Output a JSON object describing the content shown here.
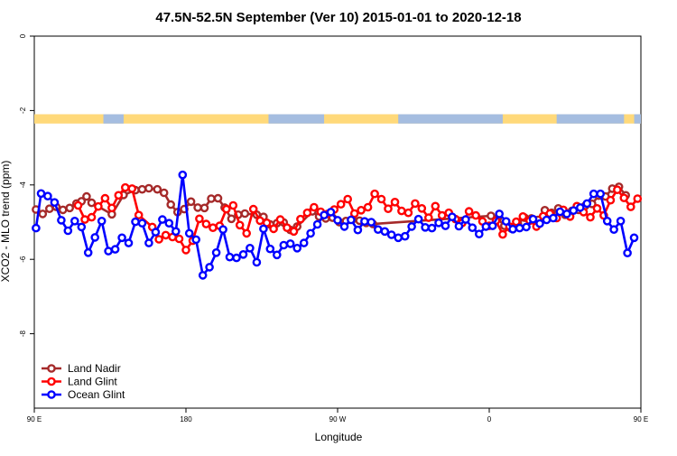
{
  "chart_data": {
    "type": "line",
    "title": "47.5N-52.5N September (Ver 10)   2015-01-01 to 2020-12-18",
    "xlabel": "Longitude",
    "ylabel": "XCO2 - MLO trend (ppm)",
    "xlim": [
      90,
      450
    ],
    "ylim": [
      -10,
      0
    ],
    "x_ticks": [
      {
        "value": 90,
        "label": "90 E"
      },
      {
        "value": 180,
        "label": "180"
      },
      {
        "value": 270,
        "label": "90 W"
      },
      {
        "value": 360,
        "label": "0"
      },
      {
        "value": 450,
        "label": "90 E"
      },
      {
        "value": 540,
        "label": "180"
      }
    ],
    "y_ticks": [
      {
        "value": 0,
        "label": "0"
      },
      {
        "value": -2,
        "label": "-2"
      },
      {
        "value": -4,
        "label": "-4"
      },
      {
        "value": -6,
        "label": "-6"
      },
      {
        "value": -8,
        "label": "-8"
      }
    ],
    "grid": false,
    "legend_position": "bottom-left",
    "land_ocean_band": {
      "y_range": [
        -2.1,
        -2.35
      ],
      "land_color": "#ffd97a",
      "ocean_color": "#a5bde0",
      "ocean_segments": [
        [
          131,
          143
        ],
        [
          229,
          262
        ],
        [
          306,
          368
        ],
        [
          400,
          440
        ],
        [
          446,
          450
        ]
      ]
    },
    "series": [
      {
        "name": "Land Nadir",
        "color": "#a52a2a",
        "x": [
          91,
          95,
          99,
          103,
          107,
          111,
          115,
          118,
          121,
          124,
          136,
          143,
          150,
          154,
          158,
          163,
          167,
          171,
          175,
          179,
          183,
          187,
          191,
          195,
          199,
          203,
          207,
          211,
          215,
          222,
          226,
          230,
          234,
          238,
          242,
          246,
          255,
          259,
          263,
          267,
          271,
          275,
          279,
          283,
          287,
          291,
          361,
          365,
          369,
          373,
          377,
          381,
          385,
          389,
          393,
          397,
          401,
          405,
          409,
          413,
          417,
          421,
          425,
          429,
          433,
          437,
          441
        ],
        "y": [
          -4.66,
          -4.78,
          -4.64,
          -4.59,
          -4.67,
          -4.62,
          -4.5,
          -4.44,
          -4.31,
          -4.48,
          -4.79,
          -4.27,
          -4.14,
          -4.12,
          -4.09,
          -4.12,
          -4.21,
          -4.53,
          -4.73,
          -4.65,
          -4.45,
          -4.61,
          -4.62,
          -4.37,
          -4.36,
          -4.61,
          -4.91,
          -4.8,
          -4.77,
          -4.8,
          -4.86,
          -5.06,
          -5.03,
          -5.01,
          -5.21,
          -5.12,
          -4.71,
          -4.85,
          -4.9,
          -4.88,
          -5.0,
          -4.97,
          -4.92,
          -4.96,
          -5.02,
          -5.05,
          -4.83,
          -4.9,
          -5.1,
          -5.17,
          -5.05,
          -4.88,
          -4.9,
          -4.94,
          -4.68,
          -4.75,
          -4.63,
          -4.8,
          -4.7,
          -4.67,
          -4.56,
          -4.51,
          -4.29,
          -4.31,
          -4.1,
          -4.05,
          -4.28
        ]
      },
      {
        "name": "Land Glint",
        "color": "#ff0000",
        "x": [
          116,
          120,
          124,
          128,
          132,
          136,
          140,
          144,
          148,
          152,
          160,
          164,
          168,
          172,
          176,
          180,
          184,
          188,
          192,
          196,
          200,
          204,
          208,
          212,
          216,
          220,
          224,
          228,
          232,
          236,
          240,
          244,
          248,
          252,
          256,
          260,
          264,
          268,
          272,
          276,
          280,
          284,
          288,
          292,
          296,
          300,
          304,
          308,
          312,
          316,
          320,
          324,
          328,
          332,
          336,
          340,
          344,
          348,
          352,
          356,
          360,
          364,
          368,
          372,
          376,
          380,
          384,
          388,
          392,
          396,
          400,
          404,
          408,
          412,
          416,
          420,
          424,
          428,
          432,
          436,
          440,
          444,
          448
        ],
        "y": [
          -4.55,
          -4.93,
          -4.87,
          -4.58,
          -4.36,
          -4.62,
          -4.28,
          -4.07,
          -4.1,
          -4.81,
          -5.13,
          -5.46,
          -5.35,
          -5.4,
          -5.45,
          -5.75,
          -5.5,
          -4.91,
          -5.05,
          -5.15,
          -5.1,
          -4.65,
          -4.55,
          -5.08,
          -5.3,
          -4.65,
          -4.96,
          -5.02,
          -5.18,
          -4.93,
          -5.15,
          -5.25,
          -4.92,
          -4.75,
          -4.6,
          -4.72,
          -4.78,
          -4.66,
          -4.52,
          -4.38,
          -4.77,
          -4.68,
          -4.6,
          -4.24,
          -4.38,
          -4.64,
          -4.46,
          -4.7,
          -4.75,
          -4.5,
          -4.63,
          -4.88,
          -4.57,
          -4.82,
          -4.75,
          -4.92,
          -5.02,
          -4.71,
          -4.82,
          -4.98,
          -5.1,
          -4.96,
          -5.33,
          -5.12,
          -4.99,
          -4.85,
          -4.96,
          -5.12,
          -4.84,
          -4.77,
          -4.89,
          -4.67,
          -4.85,
          -4.57,
          -4.73,
          -4.87,
          -4.63,
          -4.82,
          -4.41,
          -4.13,
          -4.35,
          -4.59,
          -4.37
        ]
      },
      {
        "name": "Ocean Glint",
        "color": "#0000ff",
        "x": [
          91,
          94,
          98,
          102,
          106,
          110,
          114,
          118,
          122,
          126,
          130,
          134,
          138,
          142,
          146,
          150,
          154,
          158,
          162,
          166,
          170,
          174,
          178,
          182,
          186,
          190,
          194,
          198,
          202,
          206,
          210,
          214,
          218,
          222,
          226,
          230,
          234,
          238,
          242,
          246,
          250,
          254,
          258,
          262,
          266,
          270,
          274,
          278,
          282,
          286,
          290,
          294,
          298,
          302,
          306,
          310,
          314,
          318,
          322,
          326,
          330,
          334,
          338,
          342,
          346,
          350,
          354,
          358,
          362,
          366,
          370,
          374,
          378,
          382,
          386,
          390,
          394,
          398,
          402,
          406,
          410,
          414,
          418,
          422,
          426,
          430,
          434,
          438,
          442,
          446
        ],
        "y": [
          -5.16,
          -4.23,
          -4.3,
          -4.47,
          -4.95,
          -5.23,
          -4.97,
          -5.13,
          -5.82,
          -5.41,
          -4.97,
          -5.78,
          -5.73,
          -5.42,
          -5.56,
          -4.99,
          -5.03,
          -5.56,
          -5.27,
          -4.93,
          -5.03,
          -5.25,
          -3.73,
          -5.3,
          -5.47,
          -6.43,
          -6.21,
          -5.82,
          -5.2,
          -5.94,
          -5.96,
          -5.87,
          -5.7,
          -6.08,
          -5.18,
          -5.72,
          -5.88,
          -5.62,
          -5.58,
          -5.7,
          -5.56,
          -5.3,
          -5.06,
          -4.81,
          -4.73,
          -4.95,
          -5.12,
          -4.94,
          -5.21,
          -4.98,
          -5.0,
          -5.2,
          -5.25,
          -5.34,
          -5.42,
          -5.38,
          -5.12,
          -4.92,
          -5.14,
          -5.16,
          -5.02,
          -5.1,
          -4.86,
          -5.11,
          -4.93,
          -5.15,
          -5.32,
          -5.12,
          -5.1,
          -4.78,
          -4.98,
          -5.19,
          -5.16,
          -5.13,
          -4.92,
          -5.04,
          -4.94,
          -4.89,
          -4.72,
          -4.78,
          -4.69,
          -4.61,
          -4.5,
          -4.24,
          -4.24,
          -4.97,
          -5.2,
          -4.97,
          -5.83,
          -5.42
        ]
      }
    ]
  }
}
